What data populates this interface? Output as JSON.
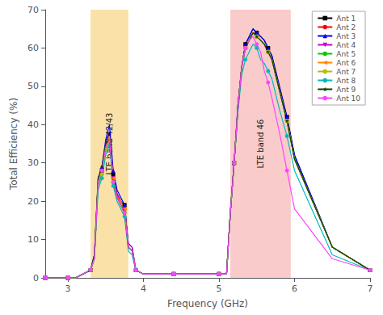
{
  "chart_data": {
    "type": "line",
    "xlabel": "Frequency (GHz)",
    "ylabel": "Total Efficiency (%)",
    "xlim": [
      2.7,
      7.0
    ],
    "ylim": [
      0,
      70
    ],
    "xticks": [
      3,
      4,
      5,
      6,
      7
    ],
    "yticks": [
      0,
      10,
      20,
      30,
      40,
      50,
      60,
      70
    ],
    "grid": false,
    "legend": "upper right",
    "bands": [
      {
        "x": [
          3.3,
          3.8
        ],
        "color": "#F5C860",
        "label": "LTE band 42/43"
      },
      {
        "x": [
          5.15,
          5.95
        ],
        "color": "#F5A0A0",
        "label": "LTE band 46"
      }
    ],
    "x": [
      2.7,
      2.8,
      2.9,
      3.0,
      3.1,
      3.2,
      3.3,
      3.35,
      3.4,
      3.45,
      3.5,
      3.55,
      3.6,
      3.65,
      3.7,
      3.75,
      3.8,
      3.85,
      3.9,
      4.0,
      4.2,
      4.4,
      4.6,
      4.8,
      5.0,
      5.1,
      5.15,
      5.2,
      5.25,
      5.3,
      5.35,
      5.4,
      5.45,
      5.5,
      5.55,
      5.6,
      5.65,
      5.7,
      5.8,
      5.9,
      6.0,
      6.5,
      7.0
    ],
    "series": [
      {
        "name": "Ant 1",
        "color": "#000000",
        "marker": "square",
        "values": [
          0,
          0,
          0,
          0,
          0,
          1,
          2,
          5,
          25,
          28,
          35,
          38,
          27,
          22,
          20,
          19,
          8,
          7,
          2,
          1,
          1,
          1,
          1,
          1,
          1,
          1,
          17,
          30,
          45,
          55,
          61,
          63,
          65,
          64,
          63,
          62,
          60,
          58,
          50,
          42,
          32,
          8,
          2
        ]
      },
      {
        "name": "Ant 2",
        "color": "#FF0000",
        "marker": "circle",
        "values": [
          0,
          0,
          0,
          0,
          0,
          1,
          2,
          5,
          25,
          28,
          34,
          37,
          26,
          21,
          20,
          18,
          8,
          7,
          2,
          1,
          1,
          1,
          1,
          1,
          1,
          1,
          17,
          30,
          44,
          55,
          60,
          62,
          64,
          63,
          62,
          61,
          59,
          57,
          49,
          41,
          31,
          8,
          2
        ]
      },
      {
        "name": "Ant 3",
        "color": "#0000FF",
        "marker": "triangle-up",
        "values": [
          0,
          0,
          0,
          0,
          0,
          1,
          2,
          6,
          26,
          29,
          36,
          40,
          28,
          23,
          21,
          19,
          9,
          8,
          2,
          1,
          1,
          1,
          1,
          1,
          1,
          1,
          17,
          30,
          45,
          55,
          61,
          63,
          65,
          64,
          63,
          62,
          60,
          58,
          50,
          42,
          32,
          8,
          2
        ]
      },
      {
        "name": "Ant 4",
        "color": "#CC00CC",
        "marker": "triangle-down",
        "values": [
          0,
          0,
          0,
          0,
          0,
          1,
          2,
          5,
          25,
          28,
          35,
          37,
          26,
          22,
          20,
          18,
          9,
          8,
          2,
          1,
          1,
          1,
          1,
          1,
          1,
          1,
          17,
          30,
          44,
          55,
          60,
          62,
          64,
          63,
          62,
          61,
          59,
          57,
          49,
          41,
          31,
          8,
          2
        ]
      },
      {
        "name": "Ant 5",
        "color": "#00CC00",
        "marker": "circle",
        "values": [
          0,
          0,
          0,
          0,
          0,
          1,
          2,
          5,
          24,
          27,
          33,
          36,
          25,
          21,
          19,
          17,
          8,
          7,
          2,
          1,
          1,
          1,
          1,
          1,
          1,
          1,
          17,
          30,
          44,
          55,
          60,
          62,
          64,
          63,
          62,
          61,
          59,
          57,
          49,
          41,
          31,
          8,
          2
        ]
      },
      {
        "name": "Ant 6",
        "color": "#FF8800",
        "marker": "triangle-left",
        "values": [
          0,
          0,
          0,
          0,
          0,
          1,
          2,
          5,
          25,
          28,
          34,
          37,
          26,
          21,
          20,
          18,
          8,
          7,
          2,
          1,
          1,
          1,
          1,
          1,
          1,
          1,
          17,
          30,
          44,
          55,
          60,
          62,
          64,
          63,
          62,
          61,
          59,
          57,
          49,
          41,
          31,
          8,
          2
        ]
      },
      {
        "name": "Ant 7",
        "color": "#BBBB00",
        "marker": "circle",
        "values": [
          0,
          0,
          0,
          0,
          0,
          1,
          2,
          5,
          25,
          27,
          33,
          36,
          25,
          21,
          19,
          17,
          8,
          7,
          2,
          1,
          1,
          1,
          1,
          1,
          1,
          1,
          17,
          30,
          44,
          55,
          60,
          62,
          64,
          63,
          62,
          61,
          59,
          57,
          49,
          41,
          31,
          8,
          2
        ]
      },
      {
        "name": "Ant 8",
        "color": "#00BBBB",
        "marker": "circle",
        "values": [
          0,
          0,
          0,
          0,
          0,
          1,
          2,
          5,
          23,
          26,
          32,
          35,
          24,
          20,
          18,
          16,
          7,
          6,
          2,
          1,
          1,
          1,
          1,
          1,
          1,
          1,
          17,
          30,
          43,
          53,
          57,
          59,
          61,
          60,
          57,
          56,
          54,
          52,
          44,
          37,
          28,
          6,
          2
        ]
      },
      {
        "name": "Ant 9",
        "color": "#004400",
        "marker": "star",
        "values": [
          0,
          0,
          0,
          0,
          0,
          1,
          2,
          6,
          26,
          29,
          35,
          36,
          25,
          21,
          19,
          17,
          8,
          7,
          2,
          1,
          1,
          1,
          1,
          1,
          1,
          1,
          17,
          30,
          44,
          55,
          60,
          62,
          64,
          63,
          62,
          61,
          59,
          57,
          49,
          41,
          31,
          8,
          2
        ]
      },
      {
        "name": "Ant 10",
        "color": "#FF44FF",
        "marker": "circle",
        "values": [
          0,
          0,
          0,
          0,
          0,
          1,
          2,
          5,
          25,
          28,
          34,
          36,
          25,
          21,
          19,
          17,
          8,
          7,
          2,
          1,
          1,
          1,
          1,
          1,
          1,
          1,
          17,
          30,
          44,
          55,
          60,
          62,
          63,
          61,
          59,
          54,
          51,
          47,
          38,
          28,
          18,
          5,
          2
        ]
      }
    ]
  }
}
